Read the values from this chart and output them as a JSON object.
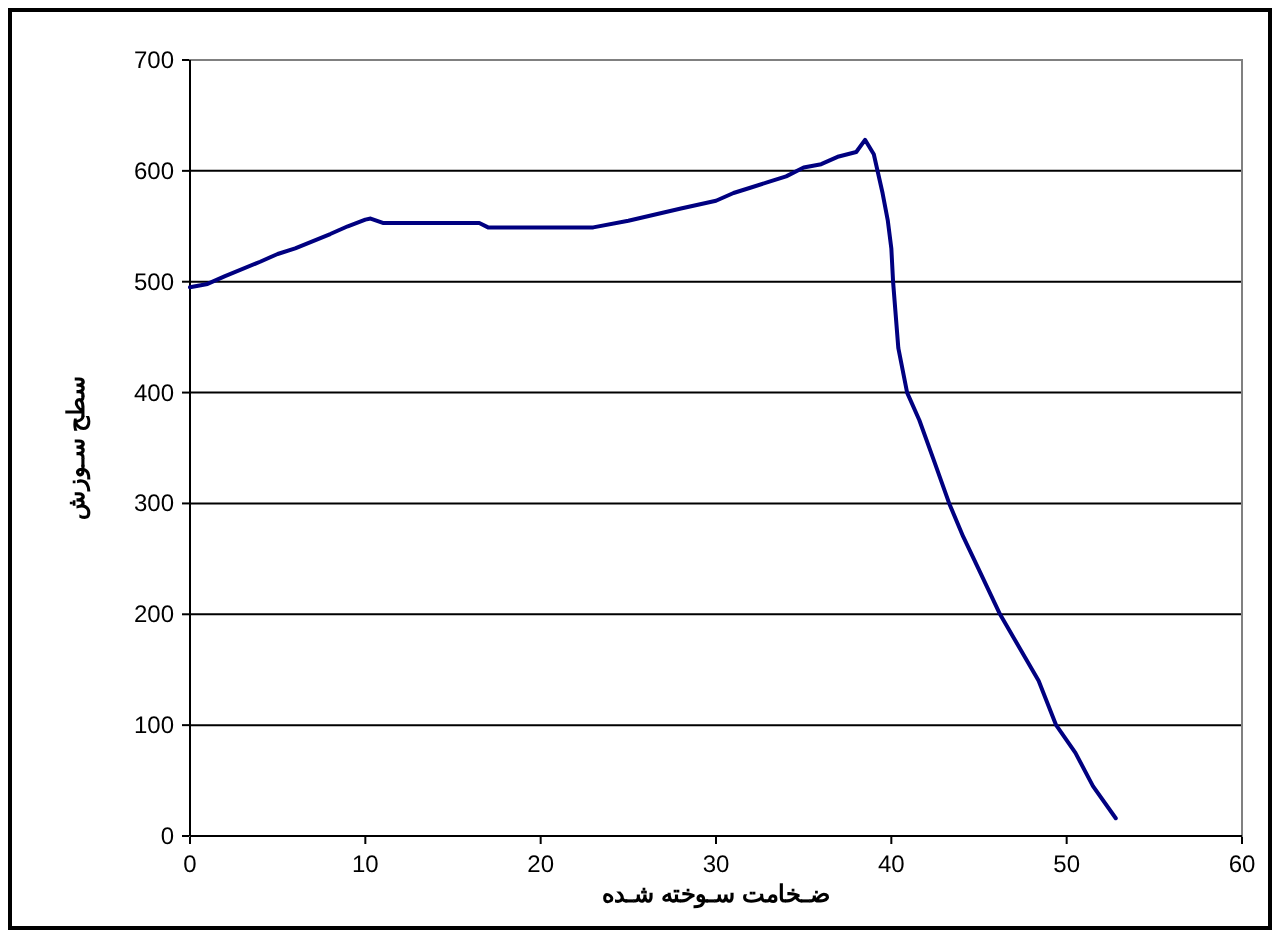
{
  "chart_data": {
    "type": "line",
    "xlabel": "ضـخامت سـوخته شـده",
    "ylabel": "سطح سـوزش",
    "xlim": [
      0,
      60
    ],
    "xticks": [
      0,
      10,
      20,
      30,
      40,
      50,
      60
    ],
    "ylim": [
      0,
      700
    ],
    "yticks": [
      0,
      100,
      200,
      300,
      400,
      500,
      600,
      700
    ],
    "grid": "y",
    "marker": "none",
    "line_style": "solid",
    "series": [
      {
        "color": "#000080",
        "x": [
          0,
          1,
          2,
          4,
          5,
          6,
          8,
          9,
          10,
          10.3,
          11,
          16.5,
          17,
          23,
          25,
          28,
          30,
          31,
          32,
          33,
          34,
          35,
          36,
          37,
          38,
          38.5,
          39.0,
          39.5,
          39.8,
          40.0,
          40.1,
          40.4,
          40.9,
          41.6,
          42.4,
          43.3,
          44.1,
          45.0,
          46.2,
          47.3,
          48.4,
          49.4,
          50.5,
          51.5,
          52.8
        ],
        "values": [
          495,
          498,
          505,
          518,
          525,
          530,
          543,
          550,
          556,
          557,
          553,
          553,
          549,
          549,
          555,
          566,
          573,
          580,
          585,
          590,
          595,
          603,
          606,
          613,
          617,
          628,
          615,
          580,
          555,
          530,
          500,
          440,
          400,
          375,
          340,
          300,
          270,
          240,
          200,
          170,
          140,
          100,
          75,
          45,
          16
        ]
      }
    ]
  }
}
